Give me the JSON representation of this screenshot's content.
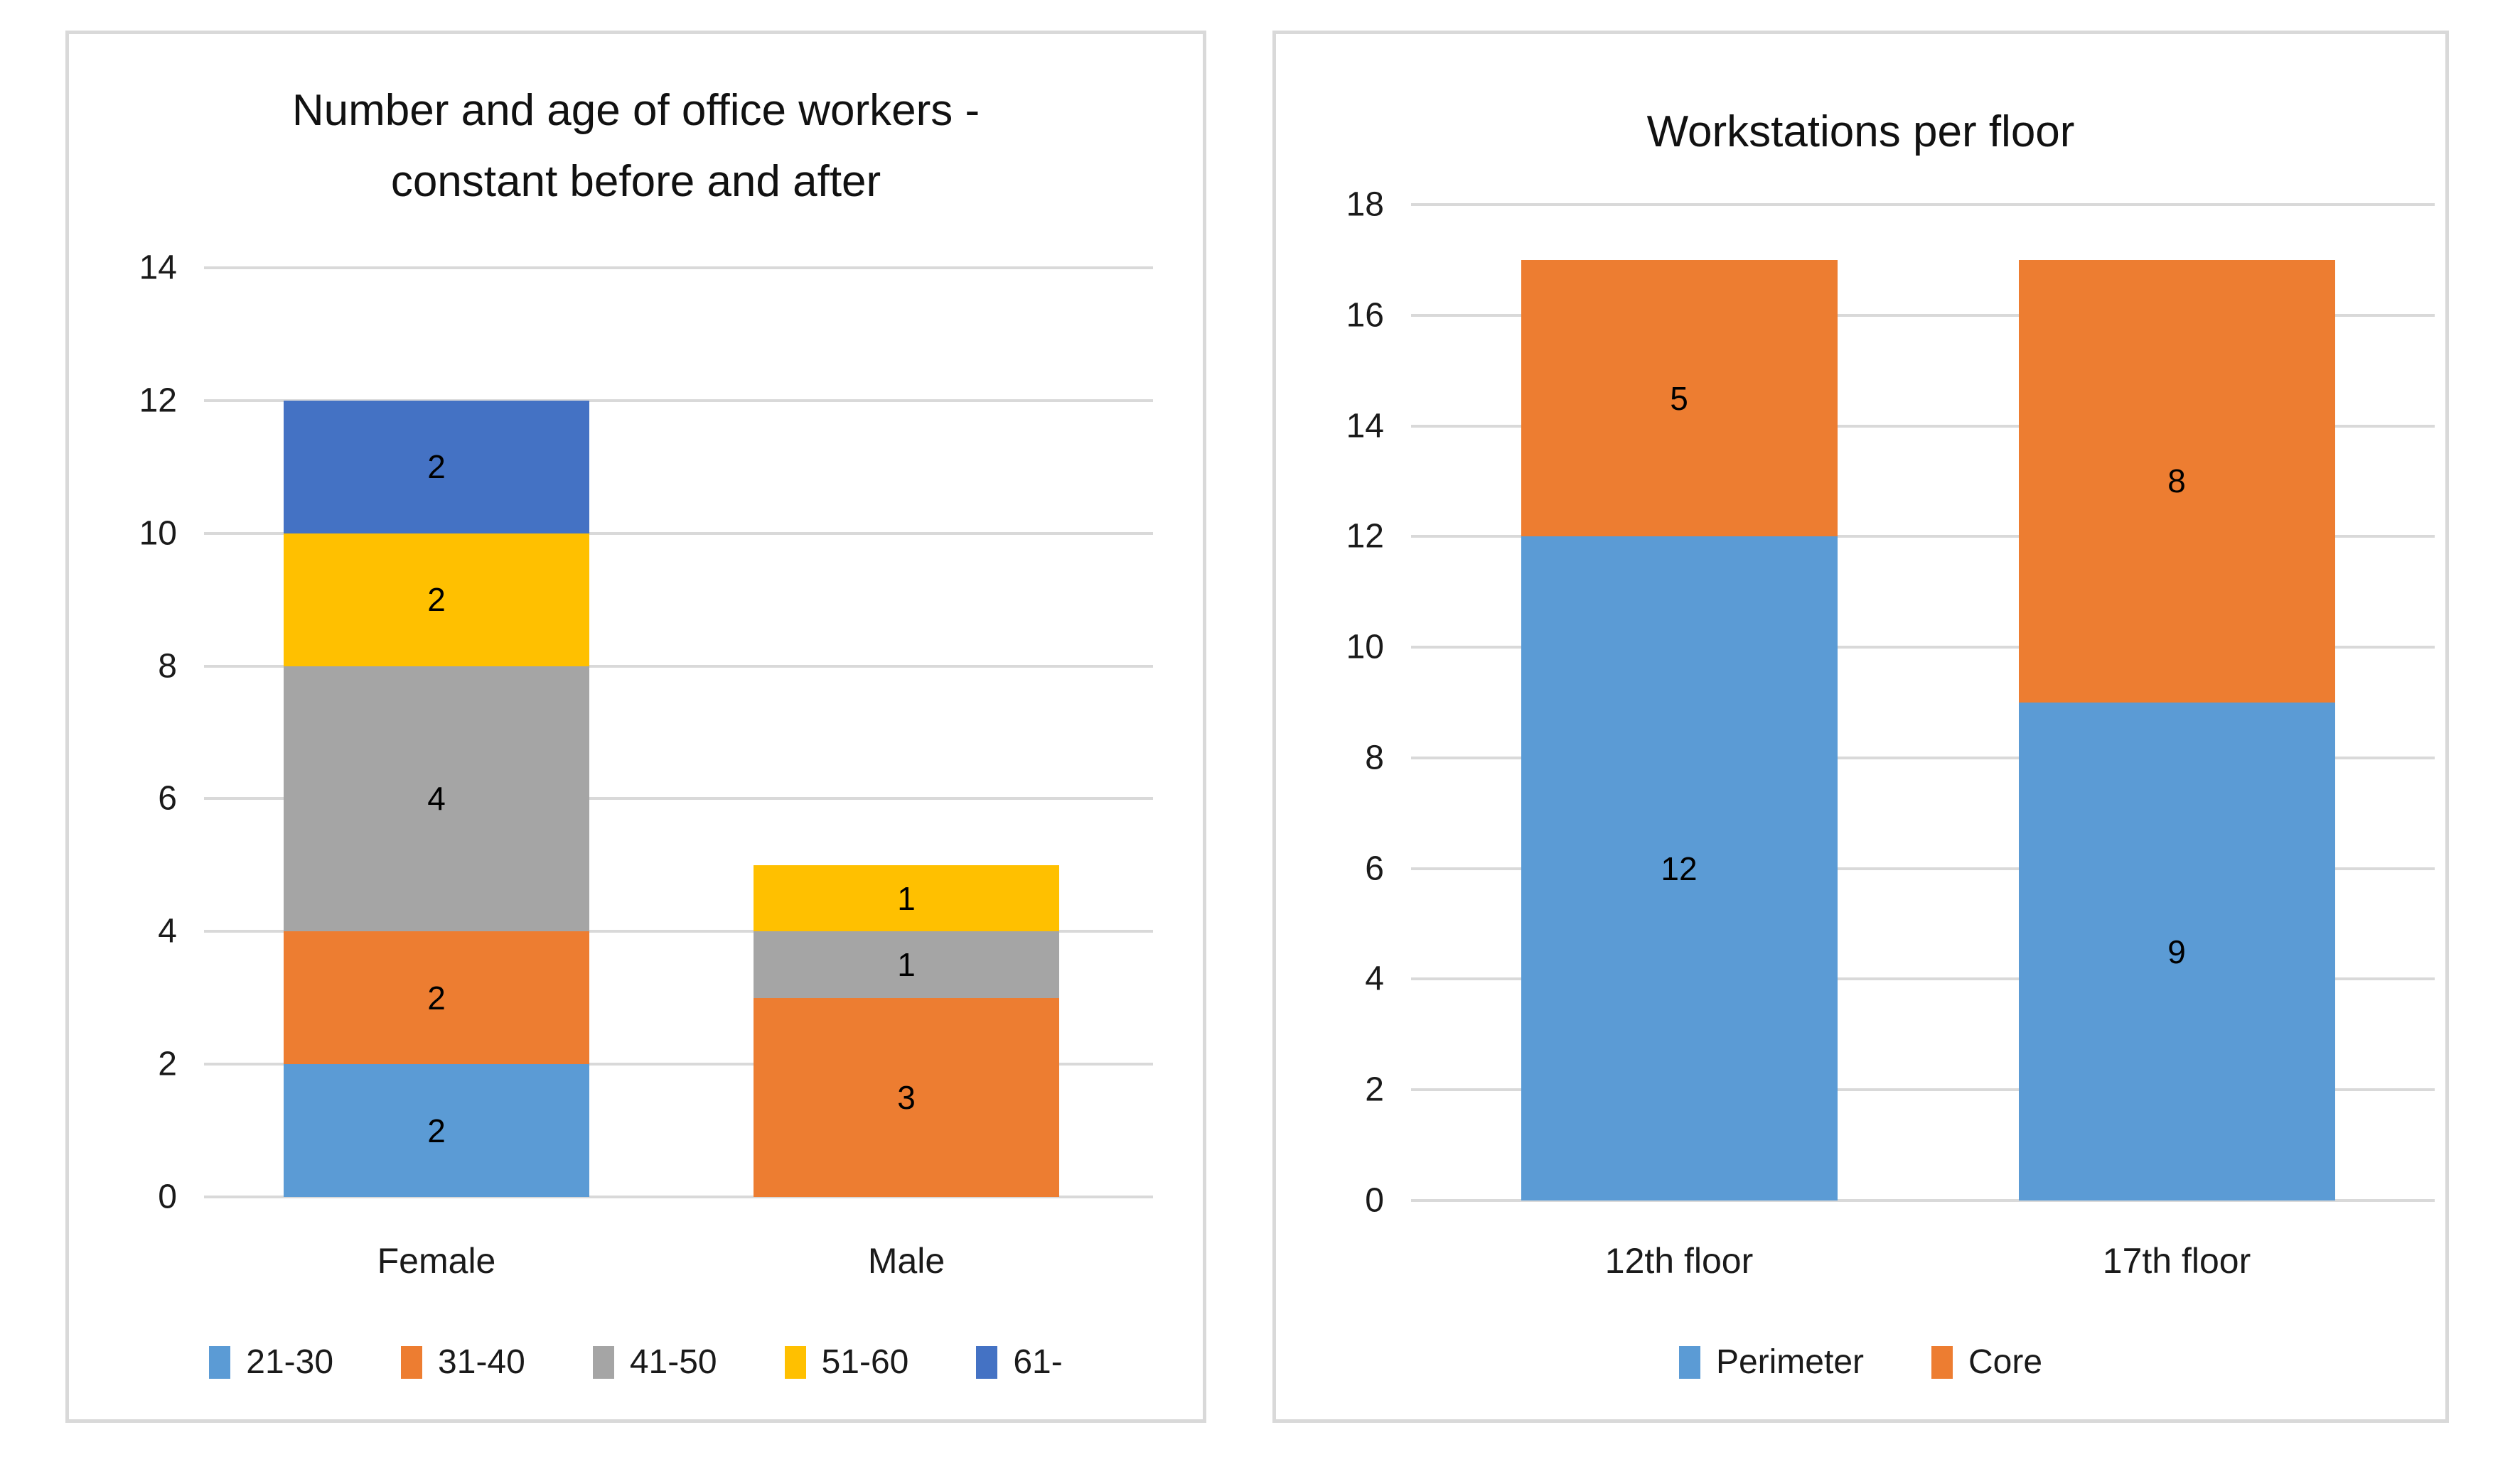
{
  "style": {
    "background": "#FFFFFF",
    "panel_border": "#D9D9D9",
    "gridline": "#D9D9D9",
    "axis_text": "#1A1A1A",
    "title_text": "#111111",
    "data_label_text": "#000000"
  },
  "chart_data": [
    {
      "type": "bar",
      "stacked": true,
      "title": "Number and age of office workers - constant before and after",
      "title_lines": [
        "Number and age of office workers -",
        "constant before and after"
      ],
      "categories": [
        "Female",
        "Male"
      ],
      "series": [
        {
          "name": "21-30",
          "color": "#5B9BD5",
          "values": [
            2,
            0
          ]
        },
        {
          "name": "31-40",
          "color": "#ED7D31",
          "values": [
            2,
            3
          ]
        },
        {
          "name": "41-50",
          "color": "#A5A5A5",
          "values": [
            4,
            1
          ]
        },
        {
          "name": "51-60",
          "color": "#FFC000",
          "values": [
            2,
            1
          ]
        },
        {
          "name": "61-",
          "color": "#4472C4",
          "values": [
            2,
            0
          ]
        }
      ],
      "ylim": [
        0,
        14
      ],
      "ytick_step": 2,
      "ytick_labels": [
        "0",
        "2",
        "4",
        "6",
        "8",
        "10",
        "12",
        "14"
      ],
      "grid": true,
      "legend_position": "bottom",
      "data_labels_shown": true
    },
    {
      "type": "bar",
      "stacked": true,
      "title": "Workstations per floor",
      "title_lines": [
        "Workstations per floor"
      ],
      "categories": [
        "12th floor",
        "17th floor"
      ],
      "series": [
        {
          "name": "Perimeter",
          "color": "#5B9BD5",
          "values": [
            12,
            9
          ]
        },
        {
          "name": "Core",
          "color": "#ED7D31",
          "values": [
            5,
            8
          ]
        }
      ],
      "ylim": [
        0,
        18
      ],
      "ytick_step": 2,
      "ytick_labels": [
        "0",
        "2",
        "4",
        "6",
        "8",
        "10",
        "12",
        "14",
        "16",
        "18"
      ],
      "grid": true,
      "legend_position": "bottom",
      "data_labels_shown": true
    }
  ]
}
